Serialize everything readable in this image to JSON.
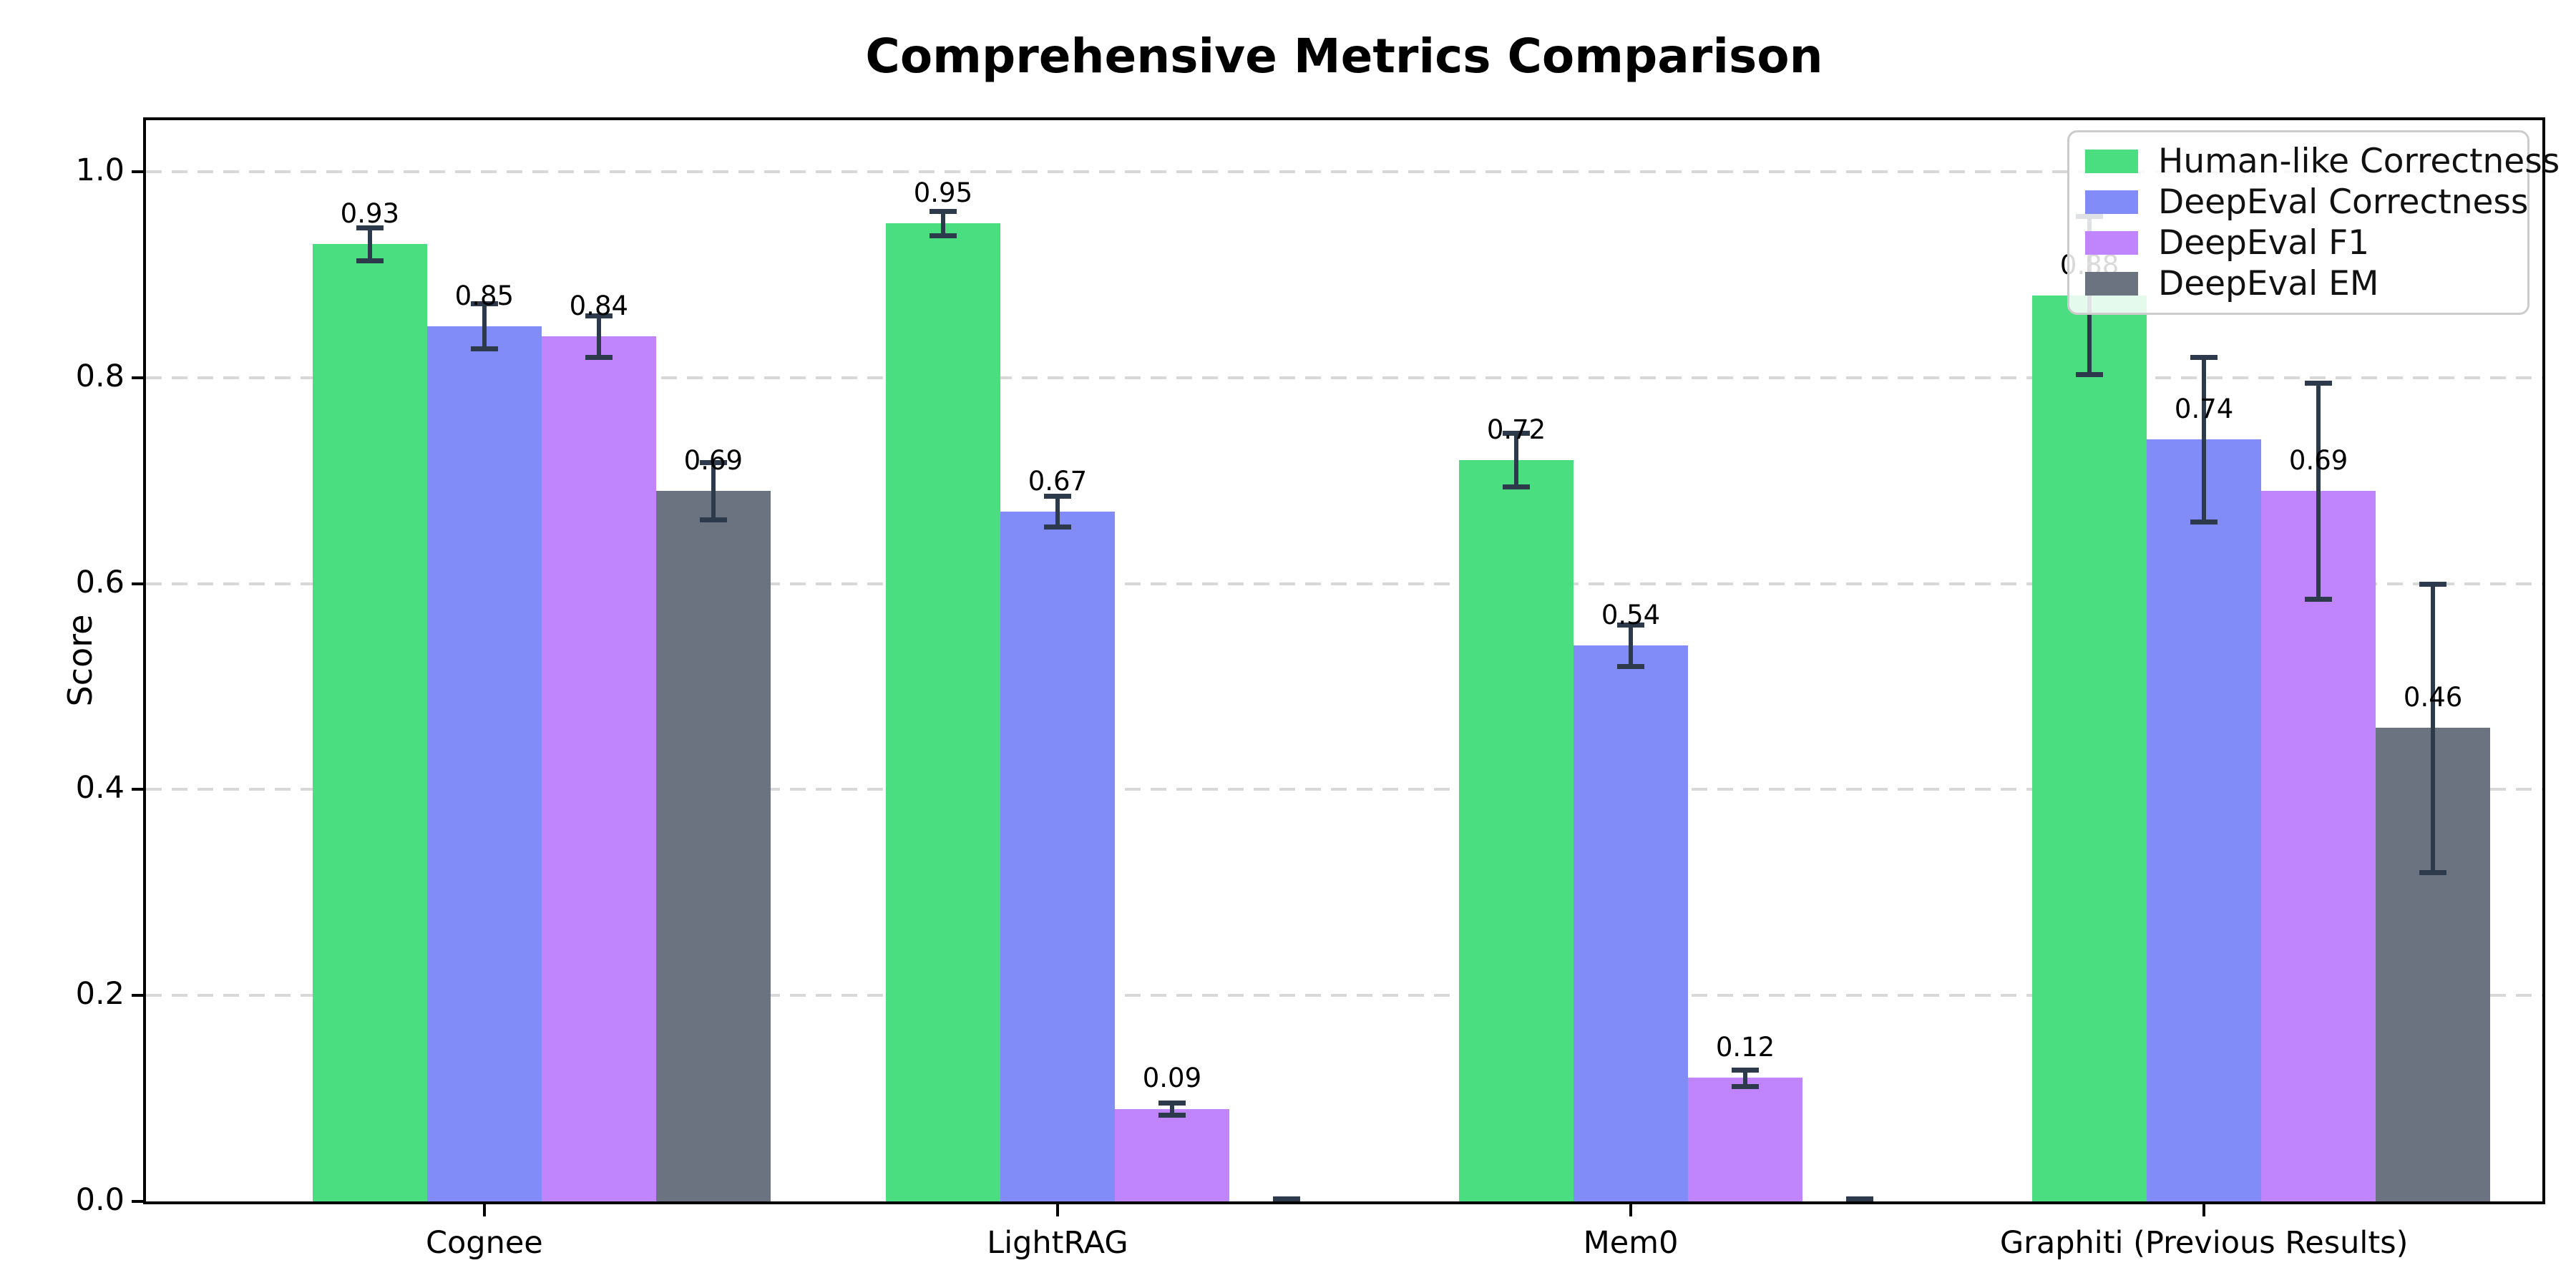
{
  "chart_data": {
    "type": "bar",
    "title": "Comprehensive Metrics Comparison",
    "xlabel": "",
    "ylabel": "Score",
    "ylim": [
      0,
      1.05
    ],
    "yticks": [
      0.0,
      0.2,
      0.4,
      0.6,
      0.8,
      1.0
    ],
    "ytick_labels": [
      "0.0",
      "0.2",
      "0.4",
      "0.6",
      "0.8",
      "1.0"
    ],
    "grid": "horizontal-dashed",
    "legend_position": "upper-right",
    "categories": [
      "Cognee",
      "LightRAG",
      "Mem0",
      "Graphiti (Previous Results)"
    ],
    "series": [
      {
        "name": "Human-like Correctness",
        "color": "#4ade80",
        "values": [
          0.93,
          0.95,
          0.72,
          0.88
        ],
        "errors": [
          0.016,
          0.012,
          0.026,
          0.077
        ],
        "value_labels": [
          "0.93",
          "0.95",
          "0.72",
          "0.88"
        ]
      },
      {
        "name": "DeepEval Correctness",
        "color": "#818cf8",
        "values": [
          0.85,
          0.67,
          0.54,
          0.74
        ],
        "errors": [
          0.022,
          0.015,
          0.02,
          0.08
        ],
        "value_labels": [
          "0.85",
          "0.67",
          "0.54",
          "0.74"
        ]
      },
      {
        "name": "DeepEval F1",
        "color": "#c084fc",
        "values": [
          0.84,
          0.09,
          0.12,
          0.69
        ],
        "errors": [
          0.02,
          0.006,
          0.008,
          0.105
        ],
        "value_labels": [
          "0.84",
          "0.09",
          "0.12",
          "0.69"
        ]
      },
      {
        "name": "DeepEval EM",
        "color": "#6b7280",
        "values": [
          0.69,
          0.0,
          0.0,
          0.46
        ],
        "errors": [
          0.028,
          0.003,
          0.003,
          0.14
        ],
        "value_labels": [
          "0.69",
          "",
          "",
          "0.46"
        ]
      }
    ]
  },
  "style": {
    "error_bar_color": "#2d3a4b",
    "grid_color": "#d8d8d8",
    "axis_color": "#000000",
    "legend_border_color": "#cccccc",
    "background_color": "#ffffff"
  }
}
